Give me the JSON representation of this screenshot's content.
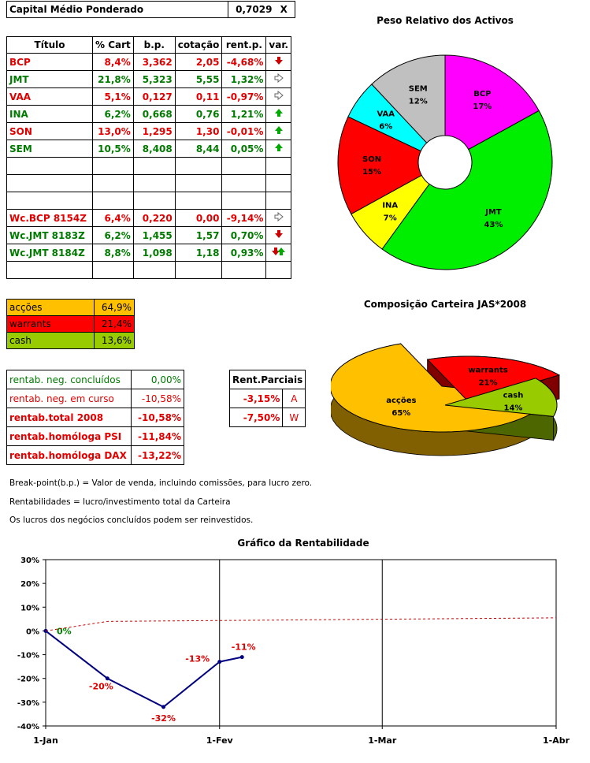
{
  "capital": {
    "label": "Capital Médio Ponderado",
    "value": "0,7029",
    "unit": "X"
  },
  "portfolio_table": {
    "headers": [
      "Título",
      "% Cart",
      "b.p.",
      "cotação",
      "rent.p.",
      "var."
    ],
    "rows": [
      {
        "titulo": "BCP",
        "pct": "8,4%",
        "bp": "3,362",
        "cot": "2,05",
        "rent": "-4,68%",
        "color": "red",
        "arrow": "down"
      },
      {
        "titulo": "JMT",
        "pct": "21,8%",
        "bp": "5,323",
        "cot": "5,55",
        "rent": "1,32%",
        "color": "green",
        "arrow": "right"
      },
      {
        "titulo": "VAA",
        "pct": "5,1%",
        "bp": "0,127",
        "cot": "0,11",
        "rent": "-0,97%",
        "color": "red",
        "arrow": "right"
      },
      {
        "titulo": "INA",
        "pct": "6,2%",
        "bp": "0,668",
        "cot": "0,76",
        "rent": "1,21%",
        "color": "green",
        "arrow": "up"
      },
      {
        "titulo": "SON",
        "pct": "13,0%",
        "bp": "1,295",
        "cot": "1,30",
        "rent": "-0,01%",
        "color": "red",
        "arrow": "up"
      },
      {
        "titulo": "SEM",
        "pct": "10,5%",
        "bp": "8,408",
        "cot": "8,44",
        "rent": "0,05%",
        "color": "green",
        "arrow": "up"
      },
      {
        "titulo": "",
        "pct": "",
        "bp": "",
        "cot": "",
        "rent": "",
        "color": "",
        "arrow": ""
      },
      {
        "titulo": "",
        "pct": "",
        "bp": "",
        "cot": "",
        "rent": "",
        "color": "",
        "arrow": ""
      },
      {
        "titulo": "",
        "pct": "",
        "bp": "",
        "cot": "",
        "rent": "",
        "color": "",
        "arrow": ""
      },
      {
        "titulo": "Wc.BCP 8154Z",
        "pct": "6,4%",
        "bp": "0,220",
        "cot": "0,00",
        "rent": "-9,14%",
        "color": "red",
        "arrow": "right"
      },
      {
        "titulo": "Wc.JMT 8183Z",
        "pct": "6,2%",
        "bp": "1,455",
        "cot": "1,57",
        "rent": "0,70%",
        "color": "green",
        "arrow": "down"
      },
      {
        "titulo": "Wc.JMT 8184Z",
        "pct": "8,8%",
        "bp": "1,098",
        "cot": "1,18",
        "rent": "0,93%",
        "color": "green",
        "arrow": "downup"
      },
      {
        "titulo": "",
        "pct": "",
        "bp": "",
        "cot": "",
        "rent": "",
        "color": "",
        "arrow": ""
      }
    ]
  },
  "allocation": [
    {
      "label": "acções",
      "value": "64,9%",
      "bg": "#ffc000"
    },
    {
      "label": "warrants",
      "value": "21,4%",
      "bg": "#ff0000"
    },
    {
      "label": "cash",
      "value": "13,6%",
      "bg": "#99cc00"
    }
  ],
  "rentab": [
    {
      "label": "rentab. neg. concluídos",
      "value": "0,00%",
      "color": "green",
      "bold": false
    },
    {
      "label": "rentab. neg. em curso",
      "value": "-10,58%",
      "color": "red",
      "bold": false
    },
    {
      "label": "rentab.total 2008",
      "value": "-10,58%",
      "color": "red",
      "bold": true
    },
    {
      "label": "rentab.homóloga PSI",
      "value": "-11,84%",
      "color": "red",
      "bold": true
    },
    {
      "label": "rentab.homóloga DAX",
      "value": "-13,22%",
      "color": "red",
      "bold": true
    }
  ],
  "parciais": {
    "header": "Rent.Parciais",
    "rows": [
      {
        "value": "-3,15%",
        "tag": "A"
      },
      {
        "value": "-7,50%",
        "tag": "W"
      }
    ]
  },
  "notes": [
    "Break-point(b.p.) = Valor de venda, incluindo comissões, para lucro zero.",
    "Rentabilidades = lucro/investimento total da Carteira",
    "Os lucros dos negócios concluídos podem ser reinvestidos."
  ],
  "chart_data": [
    {
      "type": "pie",
      "title": "Peso Relativo dos Activos",
      "labels": [
        "BCP",
        "JMT",
        "INA",
        "SON",
        "VAA",
        "SEM"
      ],
      "values": [
        17,
        43,
        7,
        15,
        6,
        12
      ],
      "value_labels": [
        "17%",
        "43%",
        "7%",
        "15%",
        "6%",
        "12%"
      ],
      "colors": [
        "#ff00ff",
        "#00ee00",
        "#ffff00",
        "#ff0000",
        "#00ffff",
        "#c0c0c0"
      ]
    },
    {
      "type": "pie",
      "title": "Composição Carteira JAS*2008",
      "labels": [
        "acções",
        "warrants",
        "cash"
      ],
      "values": [
        65,
        21,
        14
      ],
      "value_labels": [
        "65%",
        "21%",
        "14%"
      ],
      "colors": [
        "#ffc000",
        "#ff0000",
        "#99cc00"
      ]
    },
    {
      "type": "line",
      "title": "Gráfico da Rentabilidade",
      "x_ticks": [
        "1-Jan",
        "1-Fev",
        "1-Mar",
        "1-Abr"
      ],
      "yticks": [
        "30%",
        "20%",
        "10%",
        "0%",
        "-10%",
        "-20%",
        "-30%",
        "-40%"
      ],
      "ylim": [
        -40,
        30
      ],
      "series": [
        {
          "style": "solid",
          "color": "#000080",
          "points": [
            {
              "x": "2008-01-01",
              "y": 0,
              "label": "0%"
            },
            {
              "x": "2008-01-12",
              "y": -20,
              "label": "-20%"
            },
            {
              "x": "2008-01-22",
              "y": -32,
              "label": "-32%"
            },
            {
              "x": "2008-02-01",
              "y": -13,
              "label": "-13%"
            },
            {
              "x": "2008-02-05",
              "y": -11,
              "label": "-11%"
            }
          ]
        },
        {
          "style": "dashed",
          "color": "#cc0000",
          "points": [
            {
              "x": "2008-01-01",
              "y": 0
            },
            {
              "x": "2008-01-12",
              "y": 4
            },
            {
              "x": "2008-04-01",
              "y": 5.5
            }
          ]
        }
      ]
    }
  ]
}
